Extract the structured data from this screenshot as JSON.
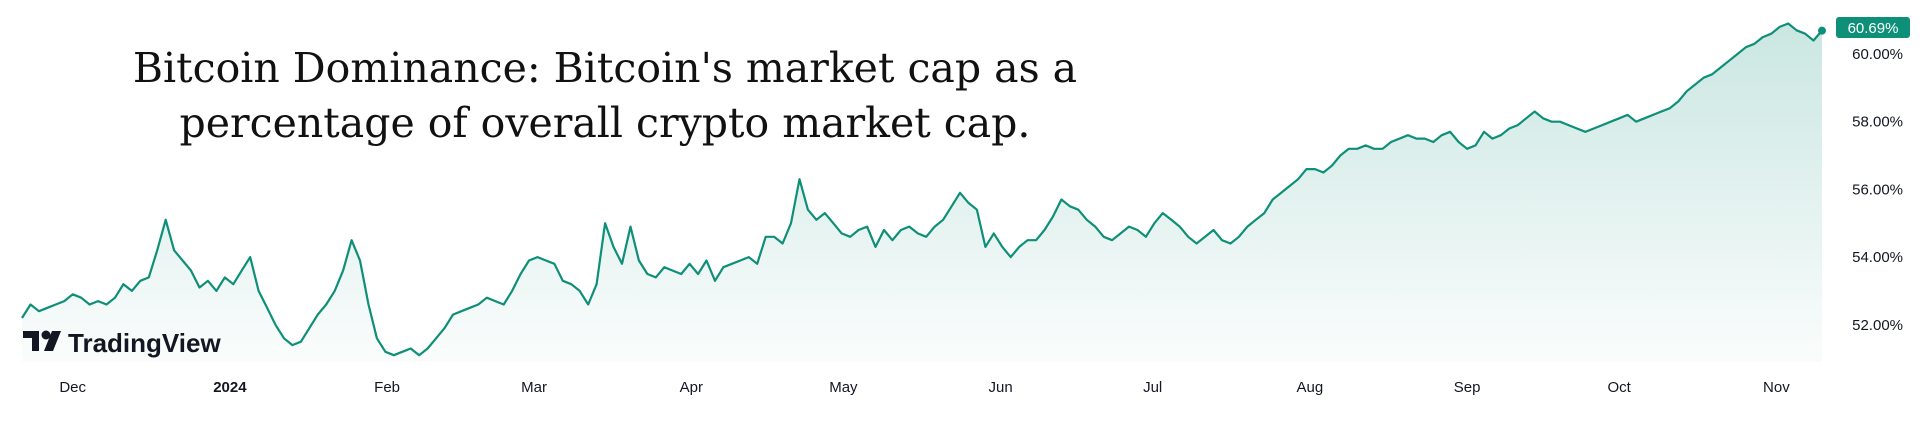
{
  "chart_data": {
    "type": "area",
    "title_lines": [
      "Bitcoin Dominance: Bitcoin's market cap as a",
      "percentage of overall crypto market cap."
    ],
    "xlabel": "",
    "ylabel": "",
    "x_ticks": [
      "Dec",
      "2024",
      "Feb",
      "Mar",
      "Apr",
      "May",
      "Jun",
      "Jul",
      "Aug",
      "Sep",
      "Oct",
      "Nov"
    ],
    "y_ticks": [
      "52.00%",
      "54.00%",
      "56.00%",
      "58.00%",
      "60.00%"
    ],
    "y_tick_values": [
      52,
      54,
      56,
      58,
      60
    ],
    "ylim": [
      50.9,
      61.3
    ],
    "x_start": "2023-11-21",
    "x_end": "2024-11-10",
    "last_value_label": "60.69%",
    "colors": {
      "line": "#0e8f78",
      "fill": "#d5ece6",
      "badge": "#0e8f78"
    },
    "grid": false,
    "series": [
      {
        "values": [
          [
            0,
            52.2
          ],
          [
            1,
            52.6
          ],
          [
            2,
            52.4
          ],
          [
            3,
            52.5
          ],
          [
            4,
            52.6
          ],
          [
            5,
            52.7
          ],
          [
            6,
            52.9
          ],
          [
            7,
            52.8
          ],
          [
            8,
            52.6
          ],
          [
            9,
            52.7
          ],
          [
            10,
            52.6
          ],
          [
            11,
            52.8
          ],
          [
            12,
            53.2
          ],
          [
            13,
            53.0
          ],
          [
            14,
            53.3
          ],
          [
            15,
            53.4
          ],
          [
            16,
            54.2
          ],
          [
            17,
            55.1
          ],
          [
            18,
            54.2
          ],
          [
            19,
            53.9
          ],
          [
            20,
            53.6
          ],
          [
            21,
            53.1
          ],
          [
            22,
            53.3
          ],
          [
            23,
            53.0
          ],
          [
            24,
            53.4
          ],
          [
            25,
            53.2
          ],
          [
            26,
            53.6
          ],
          [
            27,
            54.0
          ],
          [
            28,
            53.0
          ],
          [
            29,
            52.5
          ],
          [
            30,
            52.0
          ],
          [
            31,
            51.6
          ],
          [
            32,
            51.4
          ],
          [
            33,
            51.5
          ],
          [
            34,
            51.9
          ],
          [
            35,
            52.3
          ],
          [
            36,
            52.6
          ],
          [
            37,
            53.0
          ],
          [
            38,
            53.6
          ],
          [
            39,
            54.5
          ],
          [
            40,
            53.9
          ],
          [
            41,
            52.6
          ],
          [
            42,
            51.6
          ],
          [
            43,
            51.2
          ],
          [
            44,
            51.1
          ],
          [
            45,
            51.2
          ],
          [
            46,
            51.3
          ],
          [
            47,
            51.1
          ],
          [
            48,
            51.3
          ],
          [
            49,
            51.6
          ],
          [
            50,
            51.9
          ],
          [
            51,
            52.3
          ],
          [
            52,
            52.4
          ],
          [
            53,
            52.5
          ],
          [
            54,
            52.6
          ],
          [
            55,
            52.8
          ],
          [
            56,
            52.7
          ],
          [
            57,
            52.6
          ],
          [
            58,
            53.0
          ],
          [
            59,
            53.5
          ],
          [
            60,
            53.9
          ],
          [
            61,
            54.0
          ],
          [
            62,
            53.9
          ],
          [
            63,
            53.8
          ],
          [
            64,
            53.3
          ],
          [
            65,
            53.2
          ],
          [
            66,
            53.0
          ],
          [
            67,
            52.6
          ],
          [
            68,
            53.2
          ],
          [
            69,
            55.0
          ],
          [
            70,
            54.3
          ],
          [
            71,
            53.8
          ],
          [
            72,
            54.9
          ],
          [
            73,
            53.9
          ],
          [
            74,
            53.5
          ],
          [
            75,
            53.4
          ],
          [
            76,
            53.7
          ],
          [
            77,
            53.6
          ],
          [
            78,
            53.5
          ],
          [
            79,
            53.8
          ],
          [
            80,
            53.5
          ],
          [
            81,
            53.9
          ],
          [
            82,
            53.3
          ],
          [
            83,
            53.7
          ],
          [
            84,
            53.8
          ],
          [
            85,
            53.9
          ],
          [
            86,
            54.0
          ],
          [
            87,
            53.8
          ],
          [
            88,
            54.6
          ],
          [
            89,
            54.6
          ],
          [
            90,
            54.4
          ],
          [
            91,
            55.0
          ],
          [
            92,
            56.3
          ],
          [
            93,
            55.4
          ],
          [
            94,
            55.1
          ],
          [
            95,
            55.3
          ],
          [
            96,
            55.0
          ],
          [
            97,
            54.7
          ],
          [
            98,
            54.6
          ],
          [
            99,
            54.8
          ],
          [
            100,
            54.9
          ],
          [
            101,
            54.3
          ],
          [
            102,
            54.8
          ],
          [
            103,
            54.5
          ],
          [
            104,
            54.8
          ],
          [
            105,
            54.9
          ],
          [
            106,
            54.7
          ],
          [
            107,
            54.6
          ],
          [
            108,
            54.9
          ],
          [
            109,
            55.1
          ],
          [
            110,
            55.5
          ],
          [
            111,
            55.9
          ],
          [
            112,
            55.6
          ],
          [
            113,
            55.4
          ],
          [
            114,
            54.3
          ],
          [
            115,
            54.7
          ],
          [
            116,
            54.3
          ],
          [
            117,
            54.0
          ],
          [
            118,
            54.3
          ],
          [
            119,
            54.5
          ],
          [
            120,
            54.5
          ],
          [
            121,
            54.8
          ],
          [
            122,
            55.2
          ],
          [
            123,
            55.7
          ],
          [
            124,
            55.5
          ],
          [
            125,
            55.4
          ],
          [
            126,
            55.1
          ],
          [
            127,
            54.9
          ],
          [
            128,
            54.6
          ],
          [
            129,
            54.5
          ],
          [
            130,
            54.7
          ],
          [
            131,
            54.9
          ],
          [
            132,
            54.8
          ],
          [
            133,
            54.6
          ],
          [
            134,
            55.0
          ],
          [
            135,
            55.3
          ],
          [
            136,
            55.1
          ],
          [
            137,
            54.9
          ],
          [
            138,
            54.6
          ],
          [
            139,
            54.4
          ],
          [
            140,
            54.6
          ],
          [
            141,
            54.8
          ],
          [
            142,
            54.5
          ],
          [
            143,
            54.4
          ],
          [
            144,
            54.6
          ],
          [
            145,
            54.9
          ],
          [
            146,
            55.1
          ],
          [
            147,
            55.3
          ],
          [
            148,
            55.7
          ],
          [
            149,
            55.9
          ],
          [
            150,
            56.1
          ],
          [
            151,
            56.3
          ],
          [
            152,
            56.6
          ],
          [
            153,
            56.6
          ],
          [
            154,
            56.5
          ],
          [
            155,
            56.7
          ],
          [
            156,
            57.0
          ],
          [
            157,
            57.2
          ],
          [
            158,
            57.2
          ],
          [
            159,
            57.3
          ],
          [
            160,
            57.2
          ],
          [
            161,
            57.2
          ],
          [
            162,
            57.4
          ],
          [
            163,
            57.5
          ],
          [
            164,
            57.6
          ],
          [
            165,
            57.5
          ],
          [
            166,
            57.5
          ],
          [
            167,
            57.4
          ],
          [
            168,
            57.6
          ],
          [
            169,
            57.7
          ],
          [
            170,
            57.4
          ],
          [
            171,
            57.2
          ],
          [
            172,
            57.3
          ],
          [
            173,
            57.7
          ],
          [
            174,
            57.5
          ],
          [
            175,
            57.6
          ],
          [
            176,
            57.8
          ],
          [
            177,
            57.9
          ],
          [
            178,
            58.1
          ],
          [
            179,
            58.3
          ],
          [
            180,
            58.1
          ],
          [
            181,
            58.0
          ],
          [
            182,
            58.0
          ],
          [
            183,
            57.9
          ],
          [
            184,
            57.8
          ],
          [
            185,
            57.7
          ],
          [
            186,
            57.8
          ],
          [
            187,
            57.9
          ],
          [
            188,
            58.0
          ],
          [
            189,
            58.1
          ],
          [
            190,
            58.2
          ],
          [
            191,
            58.0
          ],
          [
            192,
            58.1
          ],
          [
            193,
            58.2
          ],
          [
            194,
            58.3
          ],
          [
            195,
            58.4
          ],
          [
            196,
            58.6
          ],
          [
            197,
            58.9
          ],
          [
            198,
            59.1
          ],
          [
            199,
            59.3
          ],
          [
            200,
            59.4
          ],
          [
            201,
            59.6
          ],
          [
            202,
            59.8
          ],
          [
            203,
            60.0
          ],
          [
            204,
            60.2
          ],
          [
            205,
            60.3
          ],
          [
            206,
            60.5
          ],
          [
            207,
            60.6
          ],
          [
            208,
            60.8
          ],
          [
            209,
            60.9
          ],
          [
            210,
            60.7
          ],
          [
            211,
            60.6
          ],
          [
            212,
            60.4
          ],
          [
            213,
            60.69
          ]
        ]
      }
    ]
  },
  "brand": {
    "name": "TradingView"
  }
}
